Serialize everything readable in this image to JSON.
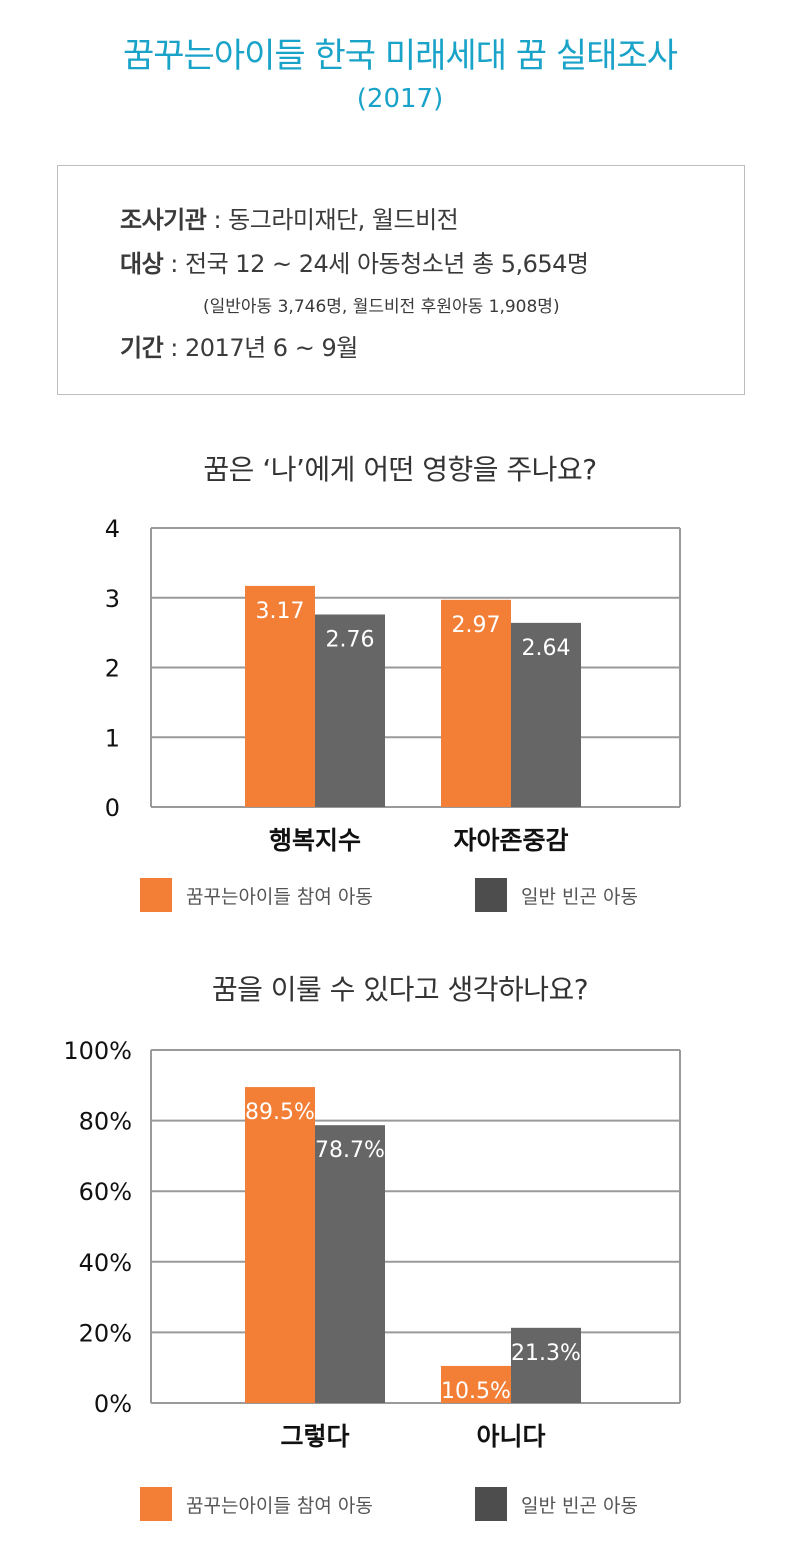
{
  "header": {
    "title": "꿈꾸는아이들 한국 미래세대 꿈 실태조사",
    "year": "(2017)"
  },
  "info": {
    "org_label": "조사기관",
    "org_value": " : 동그라미재단, 월드비전",
    "target_label": "대상",
    "target_value": " : 전국 12 ~ 24세 아동청소년 총 5,654명",
    "target_detail": "(일반아동 3,746명, 월드비전 후원아동 1,908명)",
    "period_label": "기간",
    "period_value": " : 2017년 6 ~ 9월"
  },
  "colors": {
    "accent": "#1aa3c8",
    "orange": "#f37f37",
    "gray": "#666666",
    "legend_gray": "#4d4d4d"
  },
  "chart_data": [
    {
      "type": "bar",
      "title": "꿈은 ‘나’에게 어떤 영향을 주나요?",
      "categories": [
        "행복지수",
        "자아존중감"
      ],
      "series": [
        {
          "name": "꿈꾸는아이들 참여 아동",
          "values": [
            3.17,
            2.97
          ],
          "labels": [
            "3.17",
            "2.97"
          ]
        },
        {
          "name": "일반 빈곤 아동",
          "values": [
            2.76,
            2.64
          ],
          "labels": [
            "2.76",
            "2.64"
          ]
        }
      ],
      "yticks": [
        "0",
        "1",
        "2",
        "3",
        "4"
      ],
      "ylim": [
        0,
        4
      ],
      "grid": true,
      "legend_placement": "bottom"
    },
    {
      "type": "bar",
      "title": "꿈을 이룰 수 있다고 생각하나요?",
      "categories": [
        "그렇다",
        "아니다"
      ],
      "series": [
        {
          "name": "꿈꾸는아이들 참여 아동",
          "values": [
            89.5,
            10.5
          ],
          "labels": [
            "89.5%",
            "10.5%"
          ]
        },
        {
          "name": "일반 빈곤 아동",
          "values": [
            78.7,
            21.3
          ],
          "labels": [
            "78.7%",
            "21.3%"
          ]
        }
      ],
      "yticks": [
        "0%",
        "20%",
        "40%",
        "60%",
        "80%",
        "100%"
      ],
      "ylim": [
        0,
        100
      ],
      "grid": true,
      "legend_placement": "bottom"
    }
  ]
}
